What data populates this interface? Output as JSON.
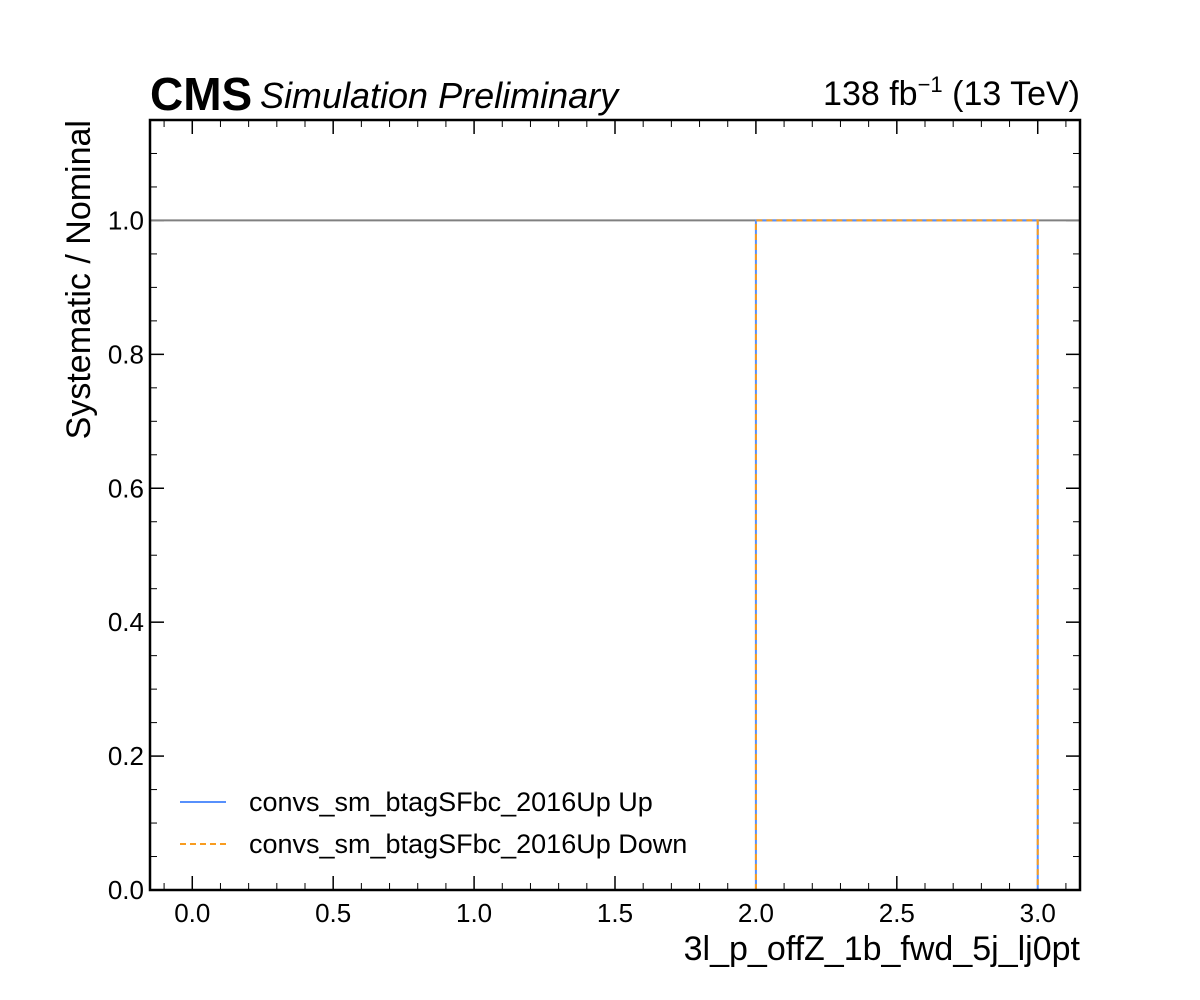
{
  "header": {
    "experiment": "CMS",
    "status": "Simulation Preliminary",
    "lumi_value": "138 fb",
    "lumi_exponent": "−1",
    "energy": " (13 TeV)"
  },
  "chart_data": {
    "type": "line",
    "xlabel": "3l_p_offZ_1b_fwd_5j_lj0pt",
    "ylabel": "Systematic / Nominal",
    "xlim": [
      -0.15,
      3.15
    ],
    "ylim": [
      0,
      1.15
    ],
    "xticks": [
      "0.0",
      "0.5",
      "1.0",
      "1.5",
      "2.0",
      "2.5",
      "3.0"
    ],
    "yticks": [
      "0.0",
      "0.2",
      "0.4",
      "0.6",
      "0.8",
      "1.0"
    ],
    "reference_line": {
      "y": 1.0,
      "color": "#808080"
    },
    "legend_position": "lower-left",
    "series": [
      {
        "name": "convs_sm_btagSFbc_2016Up Up",
        "color": "#5790fc",
        "style": "solid",
        "x": [
          2.0,
          2.0,
          3.0,
          3.0
        ],
        "y": [
          0.0,
          1.0,
          1.0,
          0.0
        ]
      },
      {
        "name": "convs_sm_btagSFbc_2016Up Down",
        "color": "#f89c20",
        "style": "dashed",
        "x": [
          2.0,
          2.0,
          3.0,
          3.0
        ],
        "y": [
          0.0,
          1.0,
          1.0,
          0.0
        ]
      }
    ]
  }
}
